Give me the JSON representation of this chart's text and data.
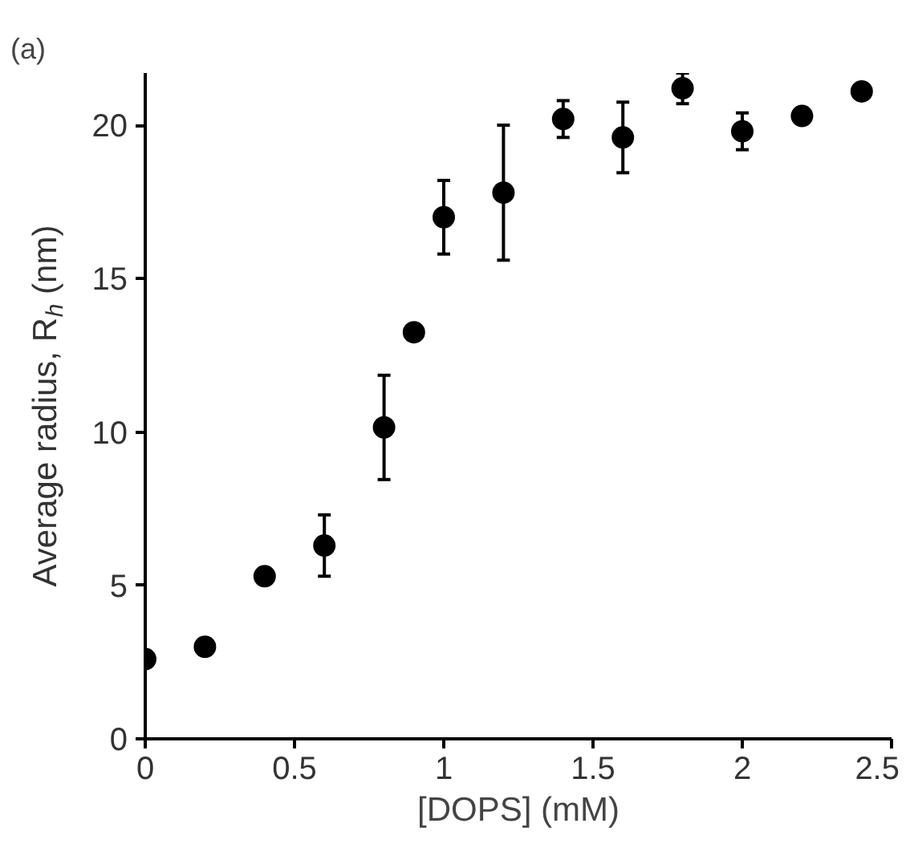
{
  "chart_data": {
    "type": "scatter",
    "title": "(a)",
    "xlabel": "[DOPS] (mM)",
    "ylabel": "Average radius, R$_{h}$ (nm)",
    "x": [
      0,
      0.2,
      0.4,
      0.6,
      0.8,
      0.9,
      1.0,
      1.2,
      1.4,
      1.6,
      1.8,
      2.0,
      2.2,
      2.4
    ],
    "values": [
      2.6,
      3.0,
      5.3,
      6.3,
      10.15,
      13.25,
      17.0,
      17.8,
      20.2,
      19.6,
      21.2,
      19.8,
      20.3,
      21.1
    ],
    "errors": [
      null,
      0.25,
      null,
      1.0,
      1.7,
      null,
      1.2,
      2.2,
      0.6,
      1.15,
      0.5,
      0.6,
      null,
      null
    ],
    "color": "#000000",
    "marker": "circle",
    "grid": false,
    "xlim": [
      0,
      2.5
    ],
    "ylim": [
      0,
      21.7
    ],
    "xticks": [
      0,
      0.5,
      1,
      1.5,
      2,
      2.5
    ],
    "yticks": [
      0,
      5,
      10,
      15,
      20
    ]
  }
}
